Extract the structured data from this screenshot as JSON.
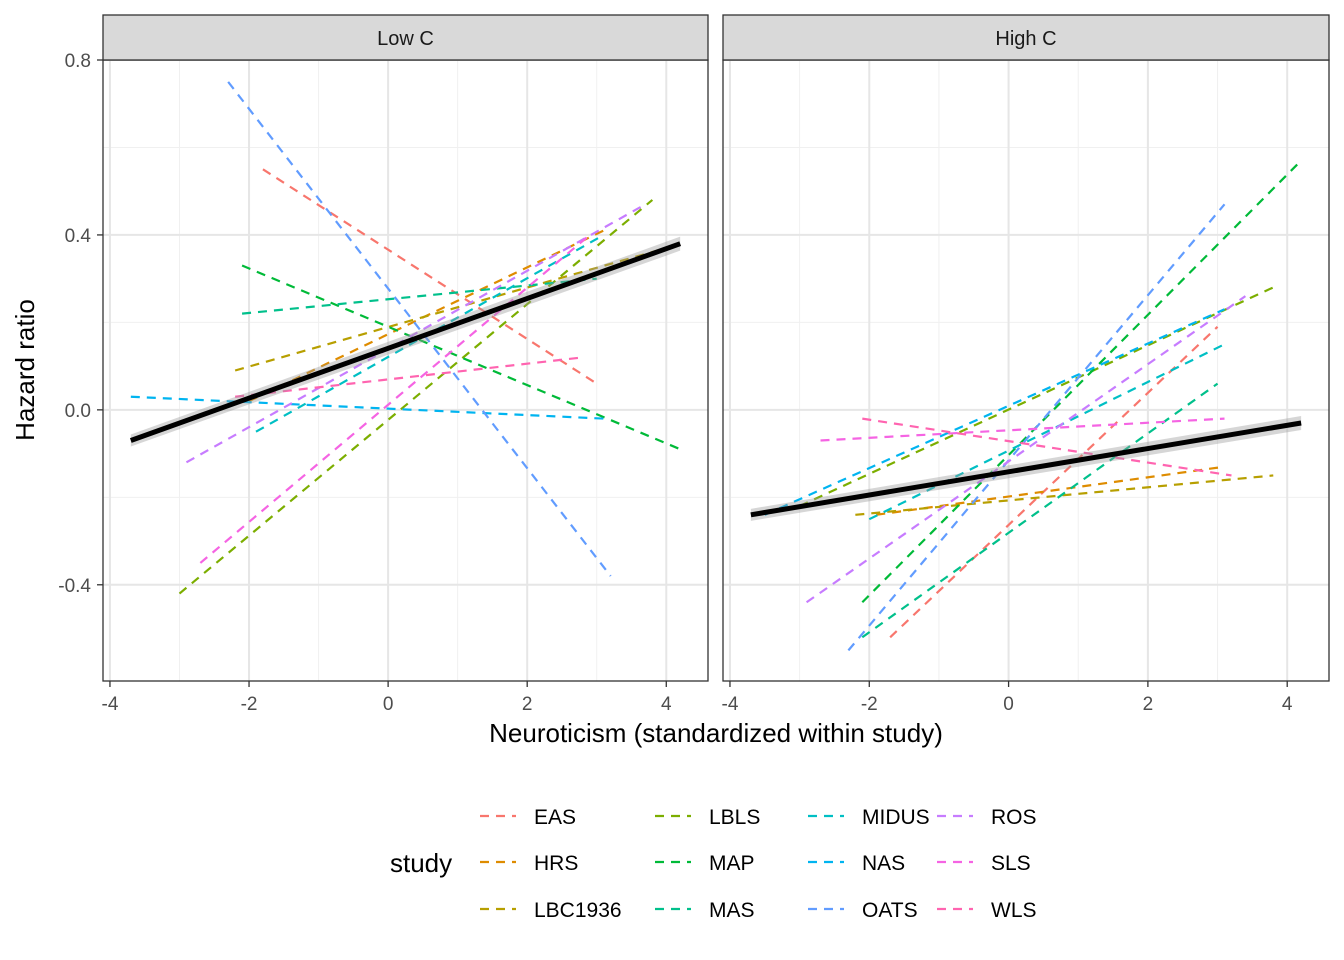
{
  "chart_data": {
    "type": "line",
    "xlabel": "Neuroticism (standardized within study)",
    "ylabel": "Hazard ratio",
    "xlim": [
      -4.1,
      4.6
    ],
    "ylim": [
      -0.62,
      0.8
    ],
    "x_ticks": [
      -4,
      -2,
      0,
      2,
      4
    ],
    "x_tick_labels": [
      "-4",
      "-2",
      "0",
      "2",
      "4"
    ],
    "y_ticks": [
      -0.4,
      0.0,
      0.4,
      0.8
    ],
    "y_tick_labels": [
      "-0.4",
      "0.0",
      "0.4",
      "0.8"
    ],
    "grid": true,
    "legend": {
      "title": "study",
      "position": "bottom",
      "items": [
        {
          "label": "EAS",
          "color": "#F8766D"
        },
        {
          "label": "HRS",
          "color": "#DE8C00"
        },
        {
          "label": "LBC1936",
          "color": "#B79F00"
        },
        {
          "label": "LBLS",
          "color": "#7CAE00"
        },
        {
          "label": "MAP",
          "color": "#00BA38"
        },
        {
          "label": "MAS",
          "color": "#00C08B"
        },
        {
          "label": "MIDUS",
          "color": "#00BFC4"
        },
        {
          "label": "NAS",
          "color": "#00B4F0"
        },
        {
          "label": "OATS",
          "color": "#619CFF"
        },
        {
          "label": "ROS",
          "color": "#C77CFF"
        },
        {
          "label": "SLS",
          "color": "#F564E3"
        },
        {
          "label": "WLS",
          "color": "#FF64B0"
        }
      ]
    },
    "panels": [
      {
        "strip": "Low C",
        "overall": {
          "x": [
            -3.7,
            4.2
          ],
          "y": [
            -0.07,
            0.38
          ]
        },
        "series": [
          {
            "name": "EAS",
            "color": "#F8766D",
            "x": [
              -1.8,
              3.0
            ],
            "y": [
              0.55,
              0.06
            ]
          },
          {
            "name": "HRS",
            "color": "#DE8C00",
            "x": [
              -2.0,
              3.1
            ],
            "y": [
              0.02,
              0.41
            ]
          },
          {
            "name": "LBC1936",
            "color": "#B79F00",
            "x": [
              -2.2,
              4.0
            ],
            "y": [
              0.09,
              0.37
            ]
          },
          {
            "name": "LBLS",
            "color": "#7CAE00",
            "x": [
              -3.0,
              3.8
            ],
            "y": [
              -0.42,
              0.48
            ]
          },
          {
            "name": "MAP",
            "color": "#00BA38",
            "x": [
              -2.1,
              4.2
            ],
            "y": [
              0.33,
              -0.09
            ]
          },
          {
            "name": "MAS",
            "color": "#00C08B",
            "x": [
              -2.1,
              3.0
            ],
            "y": [
              0.22,
              0.3
            ]
          },
          {
            "name": "MIDUS",
            "color": "#00BFC4",
            "x": [
              -1.9,
              3.1
            ],
            "y": [
              -0.05,
              0.4
            ]
          },
          {
            "name": "NAS",
            "color": "#00B4F0",
            "x": [
              -3.7,
              3.1
            ],
            "y": [
              0.03,
              -0.02
            ]
          },
          {
            "name": "OATS",
            "color": "#619CFF",
            "x": [
              -2.3,
              3.2
            ],
            "y": [
              0.75,
              -0.38
            ]
          },
          {
            "name": "ROS",
            "color": "#C77CFF",
            "x": [
              -2.9,
              3.7
            ],
            "y": [
              -0.12,
              0.47
            ]
          },
          {
            "name": "SLS",
            "color": "#F564E3",
            "x": [
              -2.7,
              2.9
            ],
            "y": [
              -0.35,
              0.4
            ]
          },
          {
            "name": "WLS",
            "color": "#FF64B0",
            "x": [
              -2.2,
              2.8
            ],
            "y": [
              0.03,
              0.12
            ]
          }
        ]
      },
      {
        "strip": "High C",
        "overall": {
          "x": [
            -3.7,
            4.2
          ],
          "y": [
            -0.24,
            -0.03
          ]
        },
        "series": [
          {
            "name": "EAS",
            "color": "#F8766D",
            "x": [
              -1.7,
              3.0
            ],
            "y": [
              -0.52,
              0.19
            ]
          },
          {
            "name": "HRS",
            "color": "#DE8C00",
            "x": [
              -1.9,
              3.1
            ],
            "y": [
              -0.24,
              -0.13
            ]
          },
          {
            "name": "LBC1936",
            "color": "#B79F00",
            "x": [
              -2.2,
              3.8
            ],
            "y": [
              -0.24,
              -0.15
            ]
          },
          {
            "name": "LBLS",
            "color": "#7CAE00",
            "x": [
              -3.0,
              3.8
            ],
            "y": [
              -0.22,
              0.28
            ]
          },
          {
            "name": "MAP",
            "color": "#00BA38",
            "x": [
              -2.1,
              4.2
            ],
            "y": [
              -0.44,
              0.57
            ]
          },
          {
            "name": "MAS",
            "color": "#00C08B",
            "x": [
              -2.1,
              3.0
            ],
            "y": [
              -0.52,
              0.06
            ]
          },
          {
            "name": "MIDUS",
            "color": "#00BFC4",
            "x": [
              -2.0,
              3.1
            ],
            "y": [
              -0.25,
              0.15
            ]
          },
          {
            "name": "NAS",
            "color": "#00B4F0",
            "x": [
              -3.5,
              3.1
            ],
            "y": [
              -0.24,
              0.23
            ]
          },
          {
            "name": "OATS",
            "color": "#619CFF",
            "x": [
              -2.3,
              3.1
            ],
            "y": [
              -0.55,
              0.47
            ]
          },
          {
            "name": "ROS",
            "color": "#C77CFF",
            "x": [
              -2.9,
              3.4
            ],
            "y": [
              -0.44,
              0.26
            ]
          },
          {
            "name": "SLS",
            "color": "#F564E3",
            "x": [
              -2.7,
              3.1
            ],
            "y": [
              -0.07,
              -0.02
            ]
          },
          {
            "name": "WLS",
            "color": "#FF64B0",
            "x": [
              -2.1,
              3.2
            ],
            "y": [
              -0.02,
              -0.15
            ]
          }
        ]
      }
    ]
  }
}
